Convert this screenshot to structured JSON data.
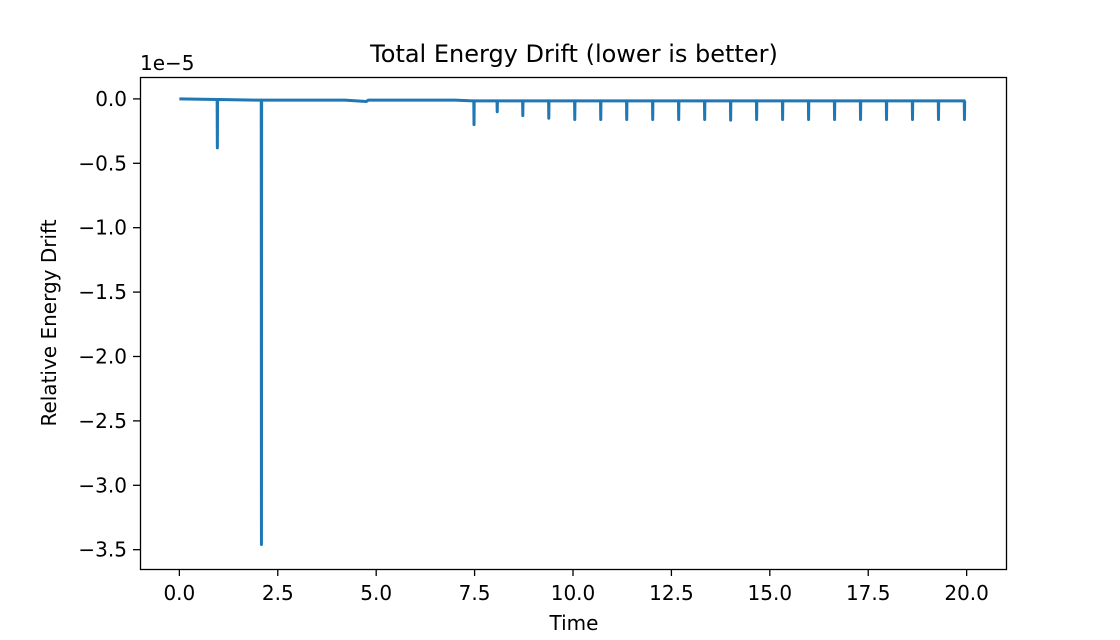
{
  "chart_data": {
    "type": "line",
    "title": "Total Energy Drift (lower is better)",
    "xlabel": "Time",
    "ylabel": "Relative Energy Drift",
    "offset_text": "1e−5",
    "xlim": [
      -1.0,
      21.0
    ],
    "ylim": [
      -3.65,
      0.17
    ],
    "x_ticks": [
      0.0,
      2.5,
      5.0,
      7.5,
      10.0,
      12.5,
      15.0,
      17.5,
      20.0
    ],
    "x_tick_labels": [
      "0.0",
      "2.5",
      "5.0",
      "7.5",
      "10.0",
      "12.5",
      "15.0",
      "17.5",
      "20.0"
    ],
    "y_ticks": [
      0.0,
      -0.5,
      -1.0,
      -1.5,
      -2.0,
      -2.5,
      -3.0,
      -3.5
    ],
    "y_tick_labels": [
      "0.0",
      "−0.5",
      "−1.0",
      "−1.5",
      "−2.0",
      "−2.5",
      "−3.0",
      "−3.5"
    ],
    "grid": false,
    "color": "#1f77b4",
    "series": [
      {
        "x": [
          0.0,
          0.96,
          0.965,
          0.97,
          0.99,
          2.08,
          2.085,
          2.09,
          2.11,
          4.2,
          4.5,
          4.75,
          4.8,
          7.0,
          7.45,
          7.48,
          7.485,
          7.49,
          7.51,
          8.07,
          8.075,
          8.08,
          8.1,
          8.72,
          8.725,
          8.73,
          8.75,
          9.38,
          9.385,
          9.39,
          9.41,
          10.04,
          10.045,
          10.05,
          10.07,
          10.7,
          10.705,
          10.71,
          10.73,
          11.36,
          11.365,
          11.37,
          11.39,
          12.02,
          12.025,
          12.03,
          12.05,
          12.68,
          12.685,
          12.69,
          12.71,
          13.34,
          13.345,
          13.35,
          13.37,
          14.0,
          14.005,
          14.01,
          14.03,
          14.66,
          14.665,
          14.67,
          14.69,
          15.32,
          15.325,
          15.33,
          15.35,
          15.98,
          15.985,
          15.99,
          16.01,
          16.64,
          16.645,
          16.65,
          16.67,
          17.3,
          17.305,
          17.31,
          17.33,
          17.96,
          17.965,
          17.97,
          17.99,
          18.62,
          18.625,
          18.63,
          18.65,
          19.28,
          19.285,
          19.29,
          19.31,
          19.94,
          19.945,
          19.95,
          19.96
        ],
        "y": [
          0.0,
          -0.005,
          -0.38,
          -0.005,
          -0.005,
          -0.01,
          -3.46,
          -0.01,
          -0.01,
          -0.01,
          -0.015,
          -0.02,
          -0.01,
          -0.01,
          -0.015,
          -0.015,
          -0.2,
          -0.015,
          -0.015,
          -0.015,
          -0.1,
          -0.015,
          -0.015,
          -0.015,
          -0.13,
          -0.015,
          -0.015,
          -0.015,
          -0.15,
          -0.015,
          -0.015,
          -0.015,
          -0.16,
          -0.015,
          -0.015,
          -0.015,
          -0.16,
          -0.015,
          -0.015,
          -0.015,
          -0.16,
          -0.015,
          -0.015,
          -0.015,
          -0.16,
          -0.015,
          -0.015,
          -0.015,
          -0.16,
          -0.015,
          -0.015,
          -0.015,
          -0.16,
          -0.015,
          -0.015,
          -0.015,
          -0.165,
          -0.015,
          -0.015,
          -0.015,
          -0.16,
          -0.015,
          -0.015,
          -0.015,
          -0.16,
          -0.015,
          -0.015,
          -0.015,
          -0.16,
          -0.015,
          -0.015,
          -0.015,
          -0.16,
          -0.015,
          -0.015,
          -0.015,
          -0.16,
          -0.015,
          -0.015,
          -0.015,
          -0.16,
          -0.015,
          -0.015,
          -0.015,
          -0.16,
          -0.015,
          -0.015,
          -0.015,
          -0.16,
          -0.015,
          -0.015,
          -0.015,
          -0.16,
          -0.015,
          -0.015
        ]
      }
    ]
  }
}
